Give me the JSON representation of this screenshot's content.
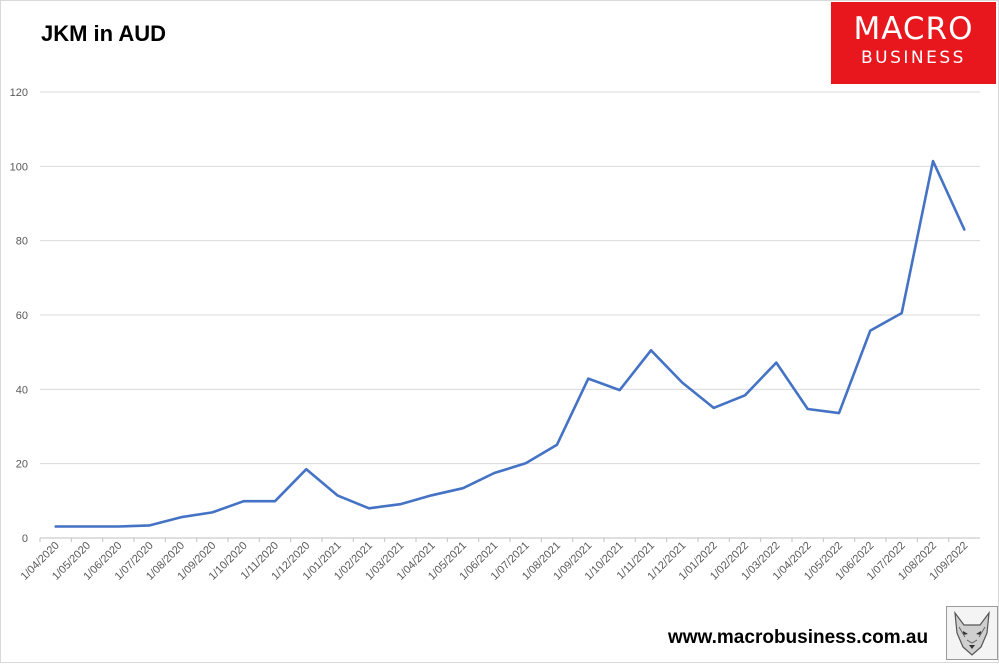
{
  "header": {
    "title": "JKM in AUD"
  },
  "logo": {
    "line1": "MACRO",
    "line2": "BUSINESS",
    "color": "#e8171e"
  },
  "footer": {
    "url": "www.macrobusiness.com.au",
    "badge_icon": "wolf-head-icon"
  },
  "chart_data": {
    "type": "line",
    "title": "JKM in AUD",
    "xlabel": "",
    "ylabel": "",
    "ylim": [
      0,
      120
    ],
    "yticks": [
      "0",
      "20",
      "40",
      "60",
      "80",
      "100",
      "120"
    ],
    "grid": true,
    "legend": "none",
    "x": [
      "1/04/2020",
      "1/05/2020",
      "1/06/2020",
      "1/07/2020",
      "1/08/2020",
      "1/09/2020",
      "1/10/2020",
      "1/11/2020",
      "1/12/2020",
      "1/01/2021",
      "1/02/2021",
      "1/03/2021",
      "1/04/2021",
      "1/05/2021",
      "1/06/2021",
      "1/07/2021",
      "1/08/2021",
      "1/09/2021",
      "1/10/2021",
      "1/11/2021",
      "1/12/2021",
      "1/01/2022",
      "1/02/2022",
      "1/03/2022",
      "1/04/2022",
      "1/05/2022",
      "1/06/2022",
      "1/07/2022",
      "1/08/2022",
      "1/09/2022"
    ],
    "series": [
      {
        "color": "#4472c4",
        "values": [
          3.1,
          3.1,
          3.1,
          3.4,
          5.6,
          6.9,
          9.9,
          9.9,
          18.5,
          11.4,
          8.0,
          9.1,
          11.5,
          13.4,
          17.5,
          20.1,
          25.1,
          42.9,
          39.8,
          50.5,
          41.8,
          35.0,
          38.4,
          47.2,
          34.7,
          33.6,
          55.8,
          60.5,
          101.4,
          83.0
        ]
      }
    ]
  }
}
